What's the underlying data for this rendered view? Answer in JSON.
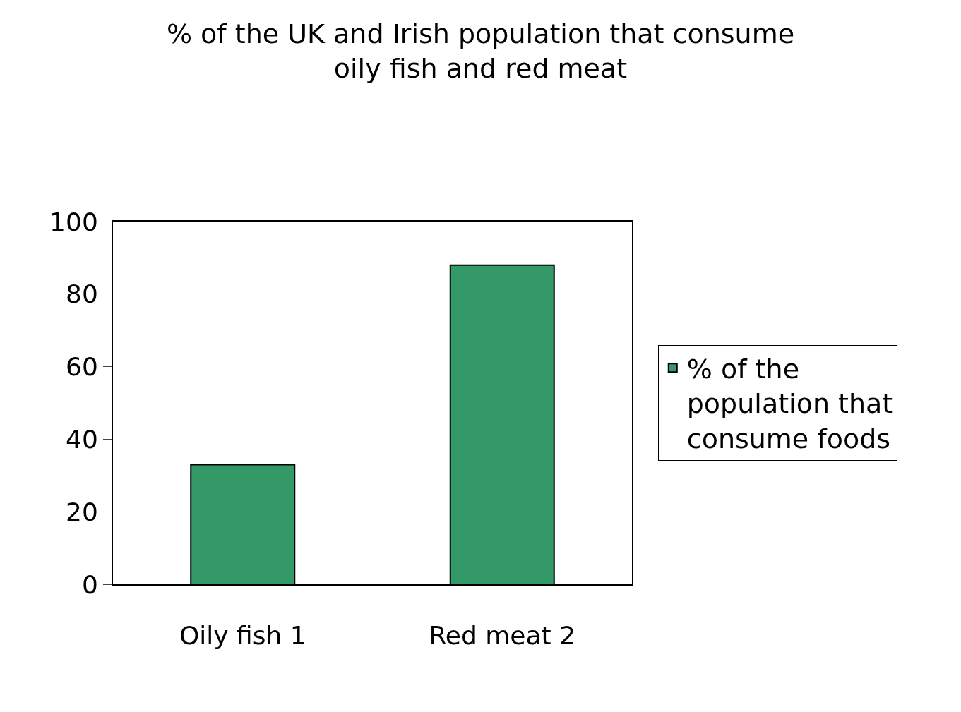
{
  "chart_data": {
    "type": "bar",
    "title": "% of the UK and Irish population that consume oily fish and red meat",
    "categories": [
      "Oily fish 1",
      "Red meat 2"
    ],
    "series": [
      {
        "name": "% of the population that consume foods",
        "color": "#339966",
        "values": [
          33,
          88
        ]
      }
    ],
    "ylim": [
      0,
      100
    ],
    "yticks": [
      0,
      20,
      40,
      60,
      80,
      100
    ],
    "legend": "right"
  }
}
